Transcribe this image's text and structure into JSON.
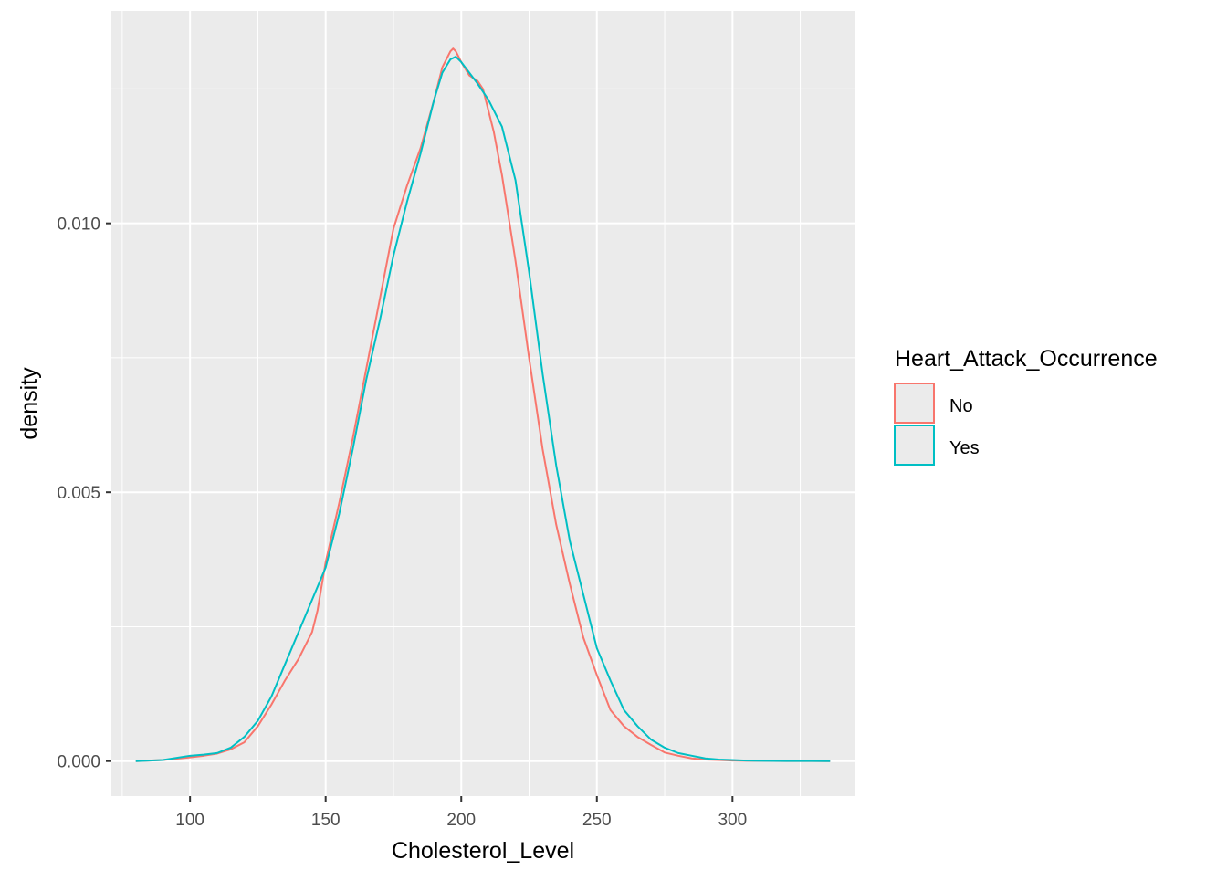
{
  "chart_data": {
    "type": "line",
    "subtype": "density",
    "title": "",
    "xlabel": "Cholesterol_Level",
    "ylabel": "density",
    "xlim": [
      71,
      345
    ],
    "ylim": [
      -0.00065,
      0.01395
    ],
    "x_ticks": [
      100,
      150,
      200,
      250,
      300
    ],
    "x_tick_labels": [
      "100",
      "150",
      "200",
      "250",
      "300"
    ],
    "y_ticks": [
      0.0,
      0.005,
      0.01
    ],
    "y_tick_labels": [
      "0.000",
      "0.005",
      "0.010"
    ],
    "grid": true,
    "background": "#EBEBEB",
    "legend": {
      "title": "Heart_Attack_Occurrence",
      "position": "right"
    },
    "series": [
      {
        "name": "No",
        "color": "#F8766D",
        "x": [
          80,
          90,
          100,
          105,
          110,
          115,
          120,
          125,
          130,
          135,
          140,
          145,
          147,
          150,
          155,
          160,
          165,
          170,
          175,
          180,
          185,
          190,
          193,
          196,
          197,
          198,
          200,
          203,
          206,
          208,
          210,
          212,
          215,
          220,
          225,
          230,
          235,
          240,
          245,
          250,
          255,
          260,
          265,
          270,
          275,
          280,
          285,
          290,
          295,
          300,
          305,
          310,
          320,
          336
        ],
        "y": [
          0.0,
          2e-05,
          7e-05,
          0.0001,
          0.00014,
          0.00022,
          0.00035,
          0.00065,
          0.00105,
          0.0015,
          0.0019,
          0.0024,
          0.0028,
          0.0037,
          0.0048,
          0.006,
          0.0073,
          0.0086,
          0.0099,
          0.0107,
          0.0114,
          0.0123,
          0.0129,
          0.0132,
          0.01325,
          0.0132,
          0.013,
          0.01275,
          0.01265,
          0.0125,
          0.0121,
          0.0117,
          0.0109,
          0.0093,
          0.0075,
          0.0058,
          0.0044,
          0.0033,
          0.0023,
          0.0016,
          0.00095,
          0.00065,
          0.00045,
          0.0003,
          0.00016,
          0.0001,
          5e-05,
          3e-05,
          2e-05,
          1e-05,
          5e-06,
          3e-06,
          1e-06,
          0.0
        ]
      },
      {
        "name": "Yes",
        "color": "#00BFC4",
        "x": [
          80,
          90,
          100,
          105,
          110,
          115,
          120,
          125,
          130,
          135,
          140,
          145,
          150,
          155,
          160,
          165,
          170,
          175,
          180,
          185,
          190,
          193,
          196,
          198,
          200,
          203,
          206,
          210,
          215,
          220,
          225,
          230,
          235,
          240,
          245,
          250,
          255,
          260,
          265,
          270,
          275,
          280,
          285,
          290,
          295,
          300,
          305,
          310,
          320,
          336
        ],
        "y": [
          0.0,
          2e-05,
          0.0001,
          0.00012,
          0.00015,
          0.00025,
          0.00045,
          0.00075,
          0.0012,
          0.0018,
          0.0024,
          0.003,
          0.0036,
          0.0046,
          0.0058,
          0.0071,
          0.0082,
          0.0094,
          0.0104,
          0.0113,
          0.0123,
          0.0128,
          0.01305,
          0.0131,
          0.013,
          0.0128,
          0.0126,
          0.0123,
          0.0118,
          0.0108,
          0.0091,
          0.0072,
          0.0055,
          0.0041,
          0.0031,
          0.0021,
          0.0015,
          0.00095,
          0.00065,
          0.0004,
          0.00025,
          0.00015,
          0.0001,
          5e-05,
          3e-05,
          2e-05,
          1e-05,
          5e-06,
          2e-06,
          0.0
        ]
      }
    ]
  }
}
